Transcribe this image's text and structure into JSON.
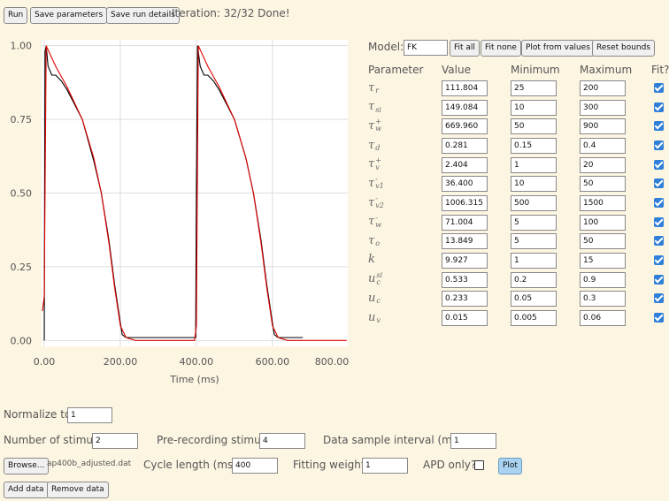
{
  "toolbar": {
    "buttons": [
      "Run",
      "Save parameters",
      "Save run details"
    ],
    "status": "Iteration: 32/32 Done!"
  },
  "chart_data": {
    "type": "line",
    "x_label": "Time (ms)",
    "xlim": [
      -7,
      798
    ],
    "ylim": [
      -0.02,
      1.02
    ],
    "xticks": [
      {
        "value": 0,
        "label": "0.00"
      },
      {
        "value": 200,
        "label": "200.00"
      },
      {
        "value": 400,
        "label": "400.00"
      },
      {
        "value": 600,
        "label": "600.00"
      },
      {
        "value": 800,
        "label": "800.00"
      }
    ],
    "yticks": [
      {
        "value": 0,
        "label": "0.00"
      },
      {
        "value": 0.25,
        "label": "0.25"
      },
      {
        "value": 0.5,
        "label": "0.50"
      },
      {
        "value": 0.75,
        "label": "0.75"
      },
      {
        "value": 1,
        "label": "1.00"
      }
    ],
    "grid": true,
    "series": [
      {
        "color": "#000000",
        "x": [
          0,
          2,
          5,
          10,
          20,
          30,
          45,
          60,
          100,
          130,
          150,
          170,
          185,
          200,
          205,
          215,
          300,
          398,
          400,
          403,
          406,
          410,
          420,
          430,
          445,
          460,
          500,
          530,
          550,
          570,
          585,
          600,
          605,
          615,
          680
        ],
        "values": [
          0,
          0.98,
          1.0,
          0.93,
          0.9,
          0.9,
          0.88,
          0.85,
          0.75,
          0.61,
          0.5,
          0.34,
          0.19,
          0.06,
          0.02,
          0.01,
          0.01,
          0.01,
          0.5,
          1.0,
          0.97,
          0.93,
          0.9,
          0.9,
          0.88,
          0.85,
          0.75,
          0.62,
          0.5,
          0.34,
          0.19,
          0.06,
          0.02,
          0.01,
          0.01
        ]
      },
      {
        "color": "#e00000",
        "x": [
          -5,
          0,
          5,
          30,
          60,
          100,
          130,
          150,
          170,
          185,
          200,
          215,
          240,
          300,
          395,
          400,
          405,
          430,
          460,
          500,
          530,
          550,
          570,
          585,
          600,
          615,
          640,
          700,
          795
        ],
        "values": [
          0.1,
          0.15,
          1.0,
          0.93,
          0.86,
          0.75,
          0.62,
          0.5,
          0.33,
          0.18,
          0.05,
          0.01,
          0,
          0,
          0,
          0.05,
          1.0,
          0.93,
          0.86,
          0.75,
          0.62,
          0.5,
          0.33,
          0.18,
          0.05,
          0.01,
          0,
          0,
          0
        ]
      }
    ]
  },
  "model": {
    "label": "Model:",
    "selected": "FK",
    "buttons": [
      "Fit all",
      "Fit none",
      "Plot from values",
      "Reset bounds"
    ]
  },
  "table": {
    "headers": [
      "Parameter",
      "Value",
      "Minimum",
      "Maximum",
      "Fit?"
    ],
    "rows": [
      {
        "symbol": "τ",
        "sub": "r",
        "value": "111.804",
        "min": "25",
        "max": "200",
        "fit": true
      },
      {
        "symbol": "τ",
        "sub": "si",
        "value": "149.084",
        "min": "10",
        "max": "300",
        "fit": true
      },
      {
        "symbol": "τ",
        "sub": "w",
        "sup": "+",
        "value": "669.960",
        "min": "50",
        "max": "900",
        "fit": true
      },
      {
        "symbol": "τ",
        "sub": "d",
        "value": "0.281",
        "min": "0.15",
        "max": "0.4",
        "fit": true
      },
      {
        "symbol": "τ",
        "sub": "v",
        "sup": "+",
        "value": "2.404",
        "min": "1",
        "max": "20",
        "fit": true
      },
      {
        "symbol": "τ",
        "sub": "v1",
        "sup": "-",
        "value": "36.400",
        "min": "10",
        "max": "50",
        "fit": true
      },
      {
        "symbol": "τ",
        "sub": "v2",
        "sup": "-",
        "value": "1006.315",
        "min": "500",
        "max": "1500",
        "fit": true
      },
      {
        "symbol": "τ",
        "sub": "w",
        "sup": "-",
        "value": "71.004",
        "min": "5",
        "max": "100",
        "fit": true
      },
      {
        "symbol": "τ",
        "sub": "o",
        "value": "13.849",
        "min": "5",
        "max": "50",
        "fit": true
      },
      {
        "symbol": "k",
        "value": "9.927",
        "min": "1",
        "max": "15",
        "fit": true
      },
      {
        "symbol": "u",
        "sub": "c",
        "sup": "si",
        "value": "0.533",
        "min": "0.2",
        "max": "0.9",
        "fit": true
      },
      {
        "symbol": "u",
        "sub": "c",
        "value": "0.233",
        "min": "0.05",
        "max": "0.3",
        "fit": true
      },
      {
        "symbol": "u",
        "sub": "v",
        "value": "0.015",
        "min": "0.005",
        "max": "0.06",
        "fit": true
      }
    ]
  },
  "form": {
    "normalize": {
      "label": "Normalize to",
      "value": "1"
    },
    "stimuli": {
      "label": "Number of stimuli",
      "value": "2"
    },
    "pre_stimuli": {
      "label": "Pre-recording stimuli",
      "value": "4"
    },
    "interval": {
      "label": "Data sample interval (ms)",
      "value": "1"
    },
    "browse": "Browse...",
    "file": "ap400b_adjusted.dat",
    "cycle": {
      "label": "Cycle length (ms)",
      "value": "400"
    },
    "weight": {
      "label": "Fitting weight",
      "value": "1"
    },
    "apd": {
      "label": "APD only?",
      "checked": false
    },
    "plot": "Plot",
    "add": "Add data",
    "remove": "Remove data"
  }
}
